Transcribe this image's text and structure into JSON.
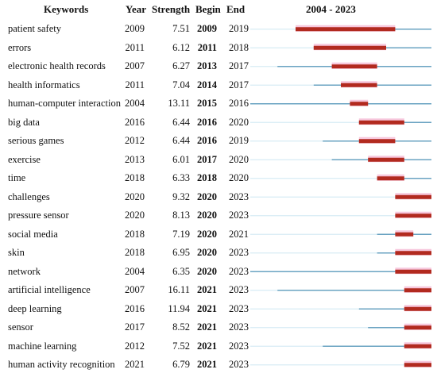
{
  "headers": {
    "keywords": "Keywords",
    "year": "Year",
    "strength": "Strength",
    "begin": "Begin",
    "end": "End",
    "range": "2004 - 2023"
  },
  "colors": {
    "baseline": "#6aa3c2",
    "burst": "#b22a1f",
    "highlight": "#f4b6d2"
  },
  "chart_data": {
    "type": "table",
    "timeline_start": 2004,
    "timeline_end": 2023,
    "rows": [
      {
        "keyword": "patient safety",
        "year": "2009",
        "strength": "7.51",
        "begin": "2009",
        "end": "2019",
        "y": 2009,
        "b": 2009,
        "e": 2019
      },
      {
        "keyword": "errors",
        "year": "2011",
        "strength": "6.12",
        "begin": "2011",
        "end": "2018",
        "y": 2011,
        "b": 2011,
        "e": 2018
      },
      {
        "keyword": "electronic health records",
        "year": "2007",
        "strength": "6.27",
        "begin": "2013",
        "end": "2017",
        "y": 2007,
        "b": 2013,
        "e": 2017
      },
      {
        "keyword": "health informatics",
        "year": "2011",
        "strength": "7.04",
        "begin": "2014",
        "end": "2017",
        "y": 2011,
        "b": 2014,
        "e": 2017
      },
      {
        "keyword": "human-computer interaction",
        "year": "2004",
        "strength": "13.11",
        "begin": "2015",
        "end": "2016",
        "y": 2004,
        "b": 2015,
        "e": 2016
      },
      {
        "keyword": "big data",
        "year": "2016",
        "strength": "6.44",
        "begin": "2016",
        "end": "2020",
        "y": 2016,
        "b": 2016,
        "e": 2020
      },
      {
        "keyword": "serious games",
        "year": "2012",
        "strength": "6.44",
        "begin": "2016",
        "end": "2019",
        "y": 2012,
        "b": 2016,
        "e": 2019
      },
      {
        "keyword": "exercise",
        "year": "2013",
        "strength": "6.01",
        "begin": "2017",
        "end": "2020",
        "y": 2013,
        "b": 2017,
        "e": 2020
      },
      {
        "keyword": "time",
        "year": "2018",
        "strength": "6.33",
        "begin": "2018",
        "end": "2020",
        "y": 2018,
        "b": 2018,
        "e": 2020
      },
      {
        "keyword": "challenges",
        "year": "2020",
        "strength": "9.32",
        "begin": "2020",
        "end": "2023",
        "y": 2020,
        "b": 2020,
        "e": 2023
      },
      {
        "keyword": "pressure sensor",
        "year": "2020",
        "strength": "8.13",
        "begin": "2020",
        "end": "2023",
        "y": 2020,
        "b": 2020,
        "e": 2023
      },
      {
        "keyword": "social media",
        "year": "2018",
        "strength": "7.19",
        "begin": "2020",
        "end": "2021",
        "y": 2018,
        "b": 2020,
        "e": 2021
      },
      {
        "keyword": "skin",
        "year": "2018",
        "strength": "6.95",
        "begin": "2020",
        "end": "2023",
        "y": 2018,
        "b": 2020,
        "e": 2023
      },
      {
        "keyword": "network",
        "year": "2004",
        "strength": "6.35",
        "begin": "2020",
        "end": "2023",
        "y": 2004,
        "b": 2020,
        "e": 2023
      },
      {
        "keyword": "artificial intelligence",
        "year": "2007",
        "strength": "16.11",
        "begin": "2021",
        "end": "2023",
        "y": 2007,
        "b": 2021,
        "e": 2023
      },
      {
        "keyword": "deep learning",
        "year": "2016",
        "strength": "11.94",
        "begin": "2021",
        "end": "2023",
        "y": 2016,
        "b": 2021,
        "e": 2023
      },
      {
        "keyword": "sensor",
        "year": "2017",
        "strength": "8.52",
        "begin": "2021",
        "end": "2023",
        "y": 2017,
        "b": 2021,
        "e": 2023
      },
      {
        "keyword": "machine learning",
        "year": "2012",
        "strength": "7.52",
        "begin": "2021",
        "end": "2023",
        "y": 2012,
        "b": 2021,
        "e": 2023
      },
      {
        "keyword": "human activity recognition",
        "year": "2021",
        "strength": "6.79",
        "begin": "2021",
        "end": "2023",
        "y": 2021,
        "b": 2021,
        "e": 2023
      }
    ]
  }
}
